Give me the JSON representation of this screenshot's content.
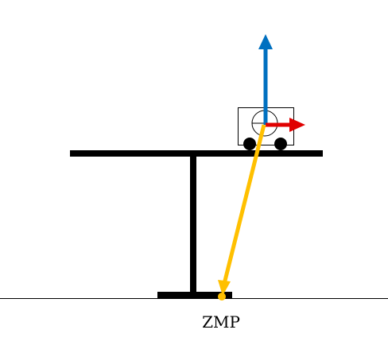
{
  "labels": {
    "zmp": "ZMP"
  },
  "colors": {
    "structure": "#000000",
    "ground_line": "#000000",
    "vertical_force_arrow": "#0070C0",
    "horizontal_force_arrow": "#E00000",
    "resultant_force_arrow": "#FFC000",
    "cart_body": "#ffffff",
    "cart_outline": "#000000",
    "background": "#ffffff"
  },
  "icons": {
    "center_of_mass": "circle-with-horizontal-bar"
  }
}
